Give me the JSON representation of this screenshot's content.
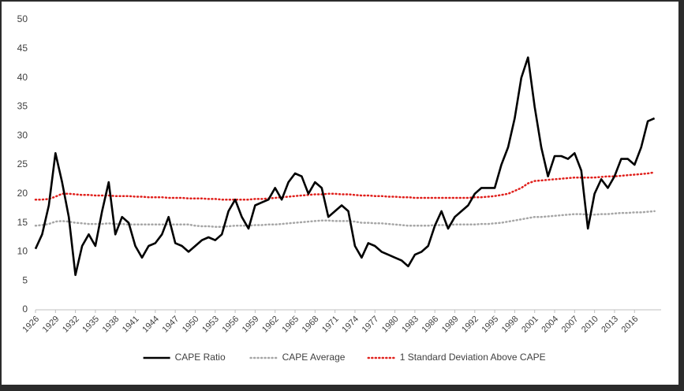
{
  "chart_data": {
    "type": "line",
    "x": [
      1926,
      1927,
      1928,
      1929,
      1930,
      1931,
      1932,
      1933,
      1934,
      1935,
      1936,
      1937,
      1938,
      1939,
      1940,
      1941,
      1942,
      1943,
      1944,
      1945,
      1946,
      1947,
      1948,
      1949,
      1950,
      1951,
      1952,
      1953,
      1954,
      1955,
      1956,
      1957,
      1958,
      1959,
      1960,
      1961,
      1962,
      1963,
      1964,
      1965,
      1966,
      1967,
      1968,
      1969,
      1970,
      1971,
      1972,
      1973,
      1974,
      1975,
      1976,
      1977,
      1978,
      1979,
      1980,
      1981,
      1982,
      1983,
      1984,
      1985,
      1986,
      1987,
      1988,
      1989,
      1990,
      1991,
      1992,
      1993,
      1994,
      1995,
      1996,
      1997,
      1998,
      1999,
      2000,
      2001,
      2002,
      2003,
      2004,
      2005,
      2006,
      2007,
      2008,
      2009,
      2010,
      2011,
      2012,
      2013,
      2014,
      2015,
      2016,
      2017,
      2018,
      2019
    ],
    "series": [
      {
        "name": "CAPE Ratio",
        "color": "#000000",
        "style": "solid",
        "values": [
          10.5,
          13,
          18,
          27,
          22,
          16,
          6,
          11,
          13,
          11,
          17,
          22,
          13,
          16,
          15,
          11,
          9,
          11,
          11.5,
          13,
          16,
          11.5,
          11,
          10,
          11,
          12,
          12.5,
          12,
          13,
          17,
          19,
          16,
          14,
          18,
          18.5,
          19,
          21,
          19,
          22,
          23.5,
          23,
          20,
          22,
          21,
          16,
          17,
          18,
          17,
          11,
          9,
          11.5,
          11,
          10,
          9.5,
          9,
          8.5,
          7.5,
          9.5,
          10,
          11,
          14.5,
          17,
          14,
          16,
          17,
          18,
          20,
          21,
          21,
          21,
          25,
          28,
          33,
          40,
          43.5,
          35,
          28,
          23,
          26.5,
          26.5,
          26,
          27,
          24,
          14,
          20,
          22.5,
          21,
          23,
          26,
          26,
          25,
          28,
          32.5,
          33
        ]
      },
      {
        "name": "CAPE Average",
        "color": "#a6a6a6",
        "style": "dotted",
        "values": [
          14.5,
          14.6,
          14.8,
          15.2,
          15.3,
          15.2,
          15,
          14.9,
          14.8,
          14.8,
          14.8,
          14.9,
          14.8,
          14.8,
          14.7,
          14.7,
          14.7,
          14.7,
          14.7,
          14.7,
          14.7,
          14.7,
          14.7,
          14.7,
          14.5,
          14.4,
          14.4,
          14.3,
          14.3,
          14.4,
          14.5,
          14.5,
          14.5,
          14.6,
          14.6,
          14.7,
          14.7,
          14.8,
          14.9,
          15,
          15.1,
          15.2,
          15.3,
          15.4,
          15.4,
          15.3,
          15.3,
          15.3,
          15.2,
          15,
          15,
          14.9,
          14.9,
          14.8,
          14.7,
          14.6,
          14.5,
          14.5,
          14.5,
          14.5,
          14.6,
          14.6,
          14.6,
          14.7,
          14.7,
          14.7,
          14.7,
          14.8,
          14.8,
          14.9,
          15,
          15.2,
          15.4,
          15.6,
          15.8,
          16,
          16,
          16.1,
          16.2,
          16.3,
          16.4,
          16.5,
          16.5,
          16.4,
          16.4,
          16.5,
          16.5,
          16.6,
          16.7,
          16.7,
          16.8,
          16.8,
          16.9,
          17
        ]
      },
      {
        "name": "1 Standard Deviation Above CAPE",
        "color": "#e0201c",
        "style": "dotted",
        "values": [
          19,
          19,
          19.1,
          19.5,
          20,
          20,
          19.9,
          19.8,
          19.8,
          19.7,
          19.7,
          19.7,
          19.6,
          19.6,
          19.6,
          19.5,
          19.5,
          19.4,
          19.4,
          19.4,
          19.3,
          19.3,
          19.3,
          19.2,
          19.2,
          19.2,
          19.1,
          19.1,
          19,
          19,
          19,
          19,
          19,
          19.1,
          19.1,
          19.2,
          19.3,
          19.4,
          19.5,
          19.6,
          19.7,
          19.8,
          19.9,
          19.9,
          20,
          20,
          19.9,
          19.9,
          19.8,
          19.7,
          19.7,
          19.6,
          19.6,
          19.5,
          19.5,
          19.4,
          19.4,
          19.3,
          19.3,
          19.3,
          19.3,
          19.3,
          19.3,
          19.3,
          19.3,
          19.3,
          19.4,
          19.4,
          19.5,
          19.6,
          19.8,
          20,
          20.5,
          21,
          21.8,
          22.2,
          22.3,
          22.4,
          22.5,
          22.6,
          22.7,
          22.8,
          22.8,
          22.8,
          22.8,
          22.9,
          23,
          23,
          23.1,
          23.2,
          23.3,
          23.4,
          23.5,
          23.7
        ]
      }
    ],
    "xlim": [
      1926,
      2020
    ],
    "xticks": [
      1926,
      1929,
      1932,
      1935,
      1938,
      1941,
      1944,
      1947,
      1950,
      1953,
      1956,
      1959,
      1962,
      1965,
      1968,
      1971,
      1974,
      1977,
      1980,
      1983,
      1986,
      1989,
      1992,
      1995,
      1998,
      2001,
      2004,
      2007,
      2010,
      2013,
      2016
    ],
    "ylim": [
      0,
      50
    ],
    "yticks": [
      0,
      5,
      10,
      15,
      20,
      25,
      30,
      35,
      40,
      45,
      50
    ],
    "grid": false,
    "legend": "bottom"
  }
}
